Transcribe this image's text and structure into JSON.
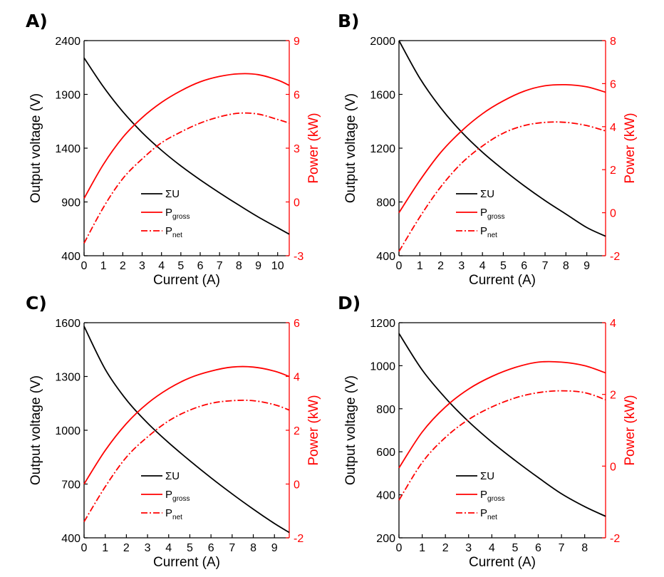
{
  "colors": {
    "left_axis": "#000000",
    "right_axis": "#ff0000",
    "voltage_line": "#000000",
    "power_line": "#ff0000"
  },
  "chart_data": [
    {
      "type": "line",
      "panel_label": "A)",
      "xlabel": "Current (A)",
      "ylabel": "Output voltage (V)",
      "y2label": "Power (kW)",
      "xlim": [
        0,
        10.6
      ],
      "ylim": [
        400,
        2400
      ],
      "y2lim": [
        -3,
        9
      ],
      "xticks": [
        0,
        1,
        2,
        3,
        4,
        5,
        6,
        7,
        8,
        9,
        10
      ],
      "yticks": [
        400,
        900,
        1400,
        1900,
        2400
      ],
      "y2ticks": [
        -3,
        0,
        3,
        6,
        9
      ],
      "legend": {
        "position": "center-bottom",
        "entries": [
          "ΣU",
          "P",
          "P"
        ],
        "subscripts": [
          "",
          "gross",
          "net"
        ]
      },
      "series": [
        {
          "name": "ΣU",
          "axis": "left",
          "style": "solid",
          "color": "#000000",
          "x": [
            0,
            1,
            2,
            3,
            4,
            5,
            6,
            7,
            8,
            9,
            10,
            10.6
          ],
          "y": [
            2240,
            1970,
            1740,
            1545,
            1380,
            1235,
            1105,
            985,
            870,
            760,
            660,
            600
          ]
        },
        {
          "name": "Pgross",
          "axis": "right",
          "style": "solid",
          "color": "#ff0000",
          "x": [
            0,
            1,
            2,
            3,
            4,
            5,
            6,
            7,
            8,
            9,
            10,
            10.6
          ],
          "y": [
            0.2,
            2.1,
            3.6,
            4.7,
            5.55,
            6.2,
            6.7,
            7,
            7.15,
            7.1,
            6.8,
            6.5
          ]
        },
        {
          "name": "Pnet",
          "axis": "right",
          "style": "dashdot",
          "color": "#ff0000",
          "x": [
            0,
            1,
            2,
            3,
            4,
            5,
            6,
            7,
            8,
            9,
            10,
            10.6
          ],
          "y": [
            -2.3,
            -0.3,
            1.3,
            2.4,
            3.3,
            3.9,
            4.4,
            4.75,
            4.95,
            4.9,
            4.6,
            4.4
          ]
        }
      ]
    },
    {
      "type": "line",
      "panel_label": "B)",
      "xlabel": "Current (A)",
      "ylabel": "Output voltage (V)",
      "y2label": "Power (kW)",
      "xlim": [
        0,
        9.9
      ],
      "ylim": [
        400,
        2000
      ],
      "y2lim": [
        -2,
        8
      ],
      "xticks": [
        0,
        1,
        2,
        3,
        4,
        5,
        6,
        7,
        8,
        9
      ],
      "yticks": [
        400,
        800,
        1200,
        1600,
        2000
      ],
      "y2ticks": [
        -2,
        0,
        2,
        4,
        6,
        8
      ],
      "legend": {
        "position": "center-bottom",
        "entries": [
          "ΣU",
          "P",
          "P"
        ],
        "subscripts": [
          "",
          "gross",
          "net"
        ]
      },
      "series": [
        {
          "name": "ΣU",
          "axis": "left",
          "style": "solid",
          "color": "#000000",
          "x": [
            0,
            1,
            2,
            3,
            4,
            5,
            6,
            7,
            8,
            9,
            9.9
          ],
          "y": [
            2000,
            1720,
            1500,
            1320,
            1170,
            1040,
            920,
            810,
            710,
            610,
            545
          ]
        },
        {
          "name": "Pgross",
          "axis": "right",
          "style": "solid",
          "color": "#ff0000",
          "x": [
            0,
            1,
            2,
            3,
            4,
            5,
            6,
            7,
            8,
            9,
            9.9
          ],
          "y": [
            0,
            1.5,
            2.8,
            3.8,
            4.6,
            5.2,
            5.65,
            5.9,
            5.95,
            5.85,
            5.6
          ]
        },
        {
          "name": "Pnet",
          "axis": "right",
          "style": "dashdot",
          "color": "#ff0000",
          "x": [
            0,
            1,
            2,
            3,
            4,
            5,
            6,
            7,
            8,
            9,
            9.9
          ],
          "y": [
            -1.8,
            -0.2,
            1.2,
            2.3,
            3.1,
            3.7,
            4.05,
            4.2,
            4.2,
            4.05,
            3.8
          ]
        }
      ]
    },
    {
      "type": "line",
      "panel_label": "C)",
      "xlabel": "Current (A)",
      "ylabel": "Output voltage (V)",
      "y2label": "Power (kW)",
      "xlim": [
        0,
        9.7
      ],
      "ylim": [
        400,
        1600
      ],
      "y2lim": [
        -2,
        6
      ],
      "xticks": [
        0,
        1,
        2,
        3,
        4,
        5,
        6,
        7,
        8,
        9
      ],
      "yticks": [
        400,
        700,
        1000,
        1300,
        1600
      ],
      "y2ticks": [
        -2,
        0,
        2,
        4,
        6
      ],
      "legend": {
        "position": "center-bottom",
        "entries": [
          "ΣU",
          "P",
          "P"
        ],
        "subscripts": [
          "",
          "gross",
          "net"
        ]
      },
      "series": [
        {
          "name": "ΣU",
          "axis": "left",
          "style": "solid",
          "color": "#000000",
          "x": [
            0,
            1,
            2,
            3,
            4,
            5,
            6,
            7,
            8,
            9,
            9.7
          ],
          "y": [
            1580,
            1340,
            1170,
            1040,
            930,
            830,
            735,
            645,
            560,
            480,
            430
          ]
        },
        {
          "name": "Pgross",
          "axis": "right",
          "style": "solid",
          "color": "#ff0000",
          "x": [
            0,
            1,
            2,
            3,
            4,
            5,
            6,
            7,
            8,
            9,
            9.7
          ],
          "y": [
            0,
            1.25,
            2.25,
            3,
            3.55,
            3.95,
            4.2,
            4.35,
            4.35,
            4.2,
            4
          ]
        },
        {
          "name": "Pnet",
          "axis": "right",
          "style": "dashdot",
          "color": "#ff0000",
          "x": [
            0,
            1,
            2,
            3,
            4,
            5,
            6,
            7,
            8,
            9,
            9.7
          ],
          "y": [
            -1.4,
            -0.1,
            1,
            1.75,
            2.35,
            2.75,
            3,
            3.1,
            3.1,
            2.95,
            2.75
          ]
        }
      ]
    },
    {
      "type": "line",
      "panel_label": "D)",
      "xlabel": "Current (A)",
      "ylabel": "Output voltage (V)",
      "y2label": "Power (kW)",
      "xlim": [
        0,
        8.9
      ],
      "ylim": [
        200,
        1200
      ],
      "y2lim": [
        -2,
        4
      ],
      "xticks": [
        0,
        1,
        2,
        3,
        4,
        5,
        6,
        7,
        8
      ],
      "yticks": [
        200,
        400,
        600,
        800,
        1000,
        1200
      ],
      "y2ticks": [
        -2,
        0,
        2,
        4
      ],
      "legend": {
        "position": "center-bottom",
        "entries": [
          "ΣU",
          "P",
          "P"
        ],
        "subscripts": [
          "",
          "gross",
          "net"
        ]
      },
      "series": [
        {
          "name": "ΣU",
          "axis": "left",
          "style": "solid",
          "color": "#000000",
          "x": [
            0,
            1,
            2,
            3,
            4,
            5,
            6,
            7,
            8,
            8.9
          ],
          "y": [
            1150,
            980,
            850,
            740,
            645,
            560,
            480,
            405,
            345,
            300
          ]
        },
        {
          "name": "Pgross",
          "axis": "right",
          "style": "solid",
          "color": "#ff0000",
          "x": [
            0,
            1,
            2,
            3,
            4,
            5,
            6,
            7,
            8,
            8.9
          ],
          "y": [
            -0.05,
            0.95,
            1.65,
            2.15,
            2.5,
            2.75,
            2.9,
            2.9,
            2.8,
            2.6
          ]
        },
        {
          "name": "Pnet",
          "axis": "right",
          "style": "dashdot",
          "color": "#ff0000",
          "x": [
            0,
            1,
            2,
            3,
            4,
            5,
            6,
            7,
            8,
            8.9
          ],
          "y": [
            -0.95,
            0.1,
            0.8,
            1.3,
            1.65,
            1.9,
            2.05,
            2.1,
            2.05,
            1.85
          ]
        }
      ]
    }
  ]
}
